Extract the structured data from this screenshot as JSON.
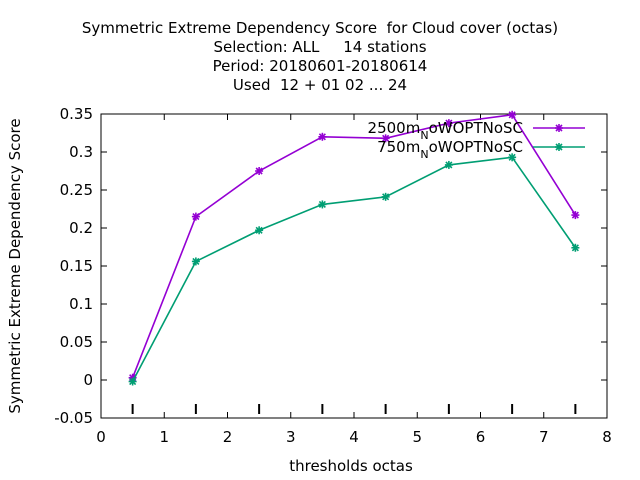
{
  "chart_data": {
    "type": "line",
    "title_lines": [
      "Symmetric Extreme Dependency Score  for Cloud cover (octas)",
      "Selection: ALL     14 stations",
      "Period: 20180601-20180614",
      "Used  12 + 01 02 ... 24"
    ],
    "xlabel": "thresholds octas",
    "ylabel": "Symmetric Extreme Dependency Score",
    "xlim": [
      0,
      8
    ],
    "ylim": [
      -0.05,
      0.35
    ],
    "xticks": [
      0,
      1,
      2,
      3,
      4,
      5,
      6,
      7,
      8
    ],
    "yticks": [
      -0.05,
      0,
      0.05,
      0.1,
      0.15,
      0.2,
      0.25,
      0.3,
      0.35
    ],
    "ytick_labels": [
      "-0.05",
      "0",
      "0.05",
      "0.1",
      "0.15",
      "0.2",
      "0.25",
      "0.3",
      "0.35"
    ],
    "grid": false,
    "legend_position": "top-right",
    "x": [
      0.5,
      1.5,
      2.5,
      3.5,
      4.5,
      5.5,
      6.5,
      7.5
    ],
    "series": [
      {
        "name_main": "2500m",
        "name_sub": "N",
        "name_rest": "oWOPTNoSC",
        "color": "#9400d3",
        "values": [
          0.003,
          0.215,
          0.275,
          0.32,
          0.318,
          0.338,
          0.349,
          0.217
        ]
      },
      {
        "name_main": "750m",
        "name_sub": "N",
        "name_rest": "oWOPTNoSC",
        "color": "#009e73",
        "values": [
          -0.002,
          0.156,
          0.197,
          0.231,
          0.241,
          0.283,
          0.293,
          0.174
        ]
      }
    ]
  }
}
